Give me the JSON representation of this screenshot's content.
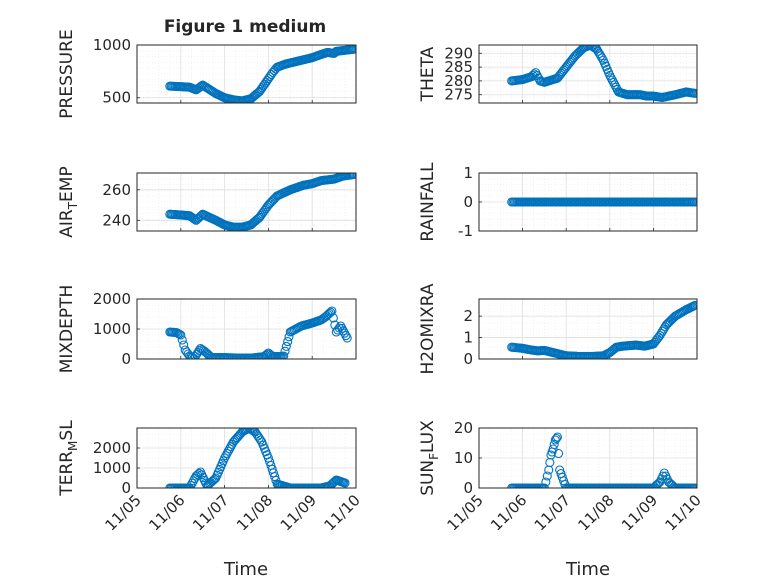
{
  "figure": {
    "title": "Figure 1 medium",
    "xlabel": "Time",
    "x_tick_labels": [
      "11/05",
      "11/06",
      "11/07",
      "11/08",
      "11/09",
      "11/10"
    ],
    "marker_color": "#0072BD",
    "axes_color": "#262626",
    "grid_color": "#dfdfdf"
  },
  "chart_data": [
    {
      "type": "scatter",
      "ylabel": "PRESSURE",
      "ylim": [
        450,
        1000
      ],
      "yticks": [
        500,
        1000
      ],
      "yticklabels": [
        "500",
        "1000"
      ],
      "x": [
        5.75,
        6.0,
        6.2,
        6.35,
        6.5,
        6.8,
        7.0,
        7.2,
        7.4,
        7.6,
        7.8,
        8.0,
        8.1,
        8.2,
        8.4,
        8.6,
        9.0,
        9.2,
        9.35,
        9.5,
        9.55,
        9.75,
        9.95
      ],
      "y": [
        610,
        605,
        600,
        575,
        620,
        540,
        500,
        480,
        470,
        490,
        560,
        680,
        740,
        790,
        820,
        840,
        880,
        910,
        930,
        920,
        940,
        950,
        960
      ]
    },
    {
      "type": "scatter",
      "ylabel": "THETA",
      "ylim": [
        272,
        293
      ],
      "yticks": [
        275,
        280,
        285,
        290
      ],
      "yticklabels": [
        "275",
        "280",
        "285",
        "290"
      ],
      "x": [
        5.75,
        6.0,
        6.2,
        6.3,
        6.4,
        6.5,
        6.8,
        7.0,
        7.2,
        7.4,
        7.55,
        7.7,
        7.85,
        8.0,
        8.2,
        8.4,
        8.7,
        8.85,
        9.0,
        9.2,
        9.5,
        9.75,
        9.95
      ],
      "y": [
        280,
        280.5,
        281.5,
        283,
        280,
        279.5,
        281,
        285,
        289,
        292,
        293,
        291.5,
        287.5,
        282,
        276,
        275,
        275,
        274.5,
        274.5,
        274,
        275,
        276,
        275.5
      ]
    },
    {
      "type": "scatter",
      "ylabel": "AIR_TEMP",
      "ylim": [
        233,
        271
      ],
      "yticks": [
        240,
        260
      ],
      "yticklabels": [
        "240",
        "260"
      ],
      "x": [
        5.75,
        6.0,
        6.2,
        6.35,
        6.5,
        6.8,
        7.0,
        7.2,
        7.4,
        7.6,
        7.8,
        8.0,
        8.2,
        8.5,
        8.8,
        9.0,
        9.2,
        9.5,
        9.7,
        9.95
      ],
      "y": [
        244,
        243.5,
        243,
        240,
        244,
        240,
        237,
        235.5,
        235.5,
        237,
        242,
        250,
        256,
        260,
        263,
        264,
        266,
        267,
        269,
        270
      ]
    },
    {
      "type": "scatter",
      "ylabel": "RAINFALL",
      "ylim": [
        -1,
        1
      ],
      "yticks": [
        -1,
        0,
        1
      ],
      "yticklabels": [
        "-1",
        "0",
        "1"
      ],
      "x": [
        5.75,
        6.0,
        6.25,
        6.5,
        6.75,
        7.0,
        7.25,
        7.5,
        7.75,
        8.0,
        8.25,
        8.5,
        8.75,
        9.0,
        9.25,
        9.5,
        9.75,
        9.95
      ],
      "y": [
        0,
        0,
        0,
        0,
        0,
        0,
        0,
        0,
        0,
        0,
        0,
        0,
        0,
        0,
        0,
        0,
        0,
        0
      ]
    },
    {
      "type": "scatter",
      "ylabel": "MIXDEPTH",
      "ylim": [
        0,
        2000
      ],
      "yticks": [
        0,
        1000,
        2000
      ],
      "yticklabels": [
        "0",
        "1000",
        "2000"
      ],
      "x": [
        5.75,
        5.9,
        6.0,
        6.1,
        6.2,
        6.3,
        6.45,
        6.55,
        6.7,
        7.0,
        7.3,
        7.6,
        7.9,
        8.0,
        8.1,
        8.25,
        8.35,
        8.5,
        8.75,
        9.0,
        9.2,
        9.3,
        9.45,
        9.55,
        9.65,
        9.8
      ],
      "y": [
        900,
        880,
        800,
        300,
        100,
        20,
        350,
        250,
        50,
        50,
        30,
        30,
        80,
        200,
        80,
        80,
        100,
        900,
        1100,
        1200,
        1300,
        1400,
        1600,
        900,
        1100,
        700
      ]
    },
    {
      "type": "scatter",
      "ylabel": "H2OMIXRA",
      "ylim": [
        0,
        2.8
      ],
      "yticks": [
        0,
        1,
        2
      ],
      "yticklabels": [
        "0",
        "1",
        "2"
      ],
      "x": [
        5.75,
        6.0,
        6.2,
        6.35,
        6.5,
        6.7,
        7.0,
        7.3,
        7.6,
        7.85,
        8.0,
        8.15,
        8.3,
        8.6,
        8.8,
        9.0,
        9.15,
        9.3,
        9.5,
        9.75,
        9.95
      ],
      "y": [
        0.55,
        0.5,
        0.42,
        0.38,
        0.4,
        0.3,
        0.15,
        0.12,
        0.12,
        0.15,
        0.3,
        0.55,
        0.6,
        0.65,
        0.6,
        0.7,
        1.1,
        1.6,
        2.0,
        2.3,
        2.5
      ]
    },
    {
      "type": "scatter",
      "ylabel": "TERR_MSL",
      "ylim": [
        0,
        3000
      ],
      "yticks": [
        0,
        1000,
        2000
      ],
      "yticklabels": [
        "0",
        "1000",
        "2000"
      ],
      "x": [
        5.75,
        6.0,
        6.2,
        6.35,
        6.45,
        6.6,
        6.8,
        7.0,
        7.2,
        7.4,
        7.55,
        7.7,
        7.85,
        8.0,
        8.2,
        8.5,
        8.8,
        9.0,
        9.2,
        9.4,
        9.55,
        9.75
      ],
      "y": [
        0,
        0,
        0,
        600,
        800,
        100,
        500,
        1500,
        2300,
        2800,
        3000,
        2800,
        2300,
        1500,
        200,
        0,
        0,
        0,
        0,
        100,
        400,
        250
      ]
    },
    {
      "type": "scatter",
      "ylabel": "SUN_FLUX",
      "ylim": [
        0,
        20
      ],
      "yticks": [
        0,
        10,
        20
      ],
      "yticklabels": [
        "0",
        "10",
        "20"
      ],
      "x": [
        5.75,
        6.0,
        6.25,
        6.5,
        6.6,
        6.65,
        6.7,
        6.75,
        6.8,
        6.85,
        7.0,
        7.5,
        8.0,
        8.5,
        9.0,
        9.15,
        9.25,
        9.35,
        9.5,
        9.75,
        9.95
      ],
      "y": [
        0,
        0,
        0,
        0,
        6,
        11,
        13,
        16,
        17,
        6,
        0,
        0,
        0,
        0,
        0,
        2,
        5,
        2,
        0,
        0,
        0
      ]
    }
  ]
}
